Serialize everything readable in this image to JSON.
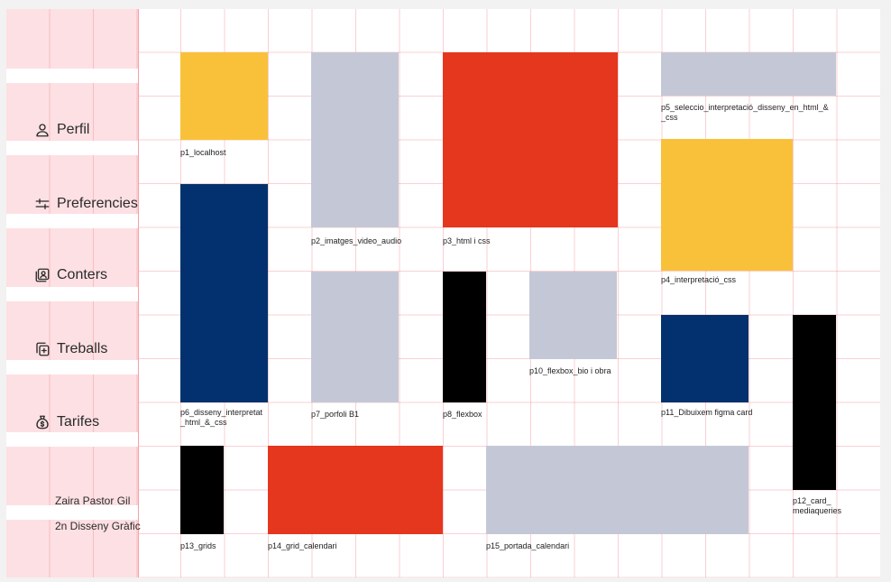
{
  "colors": {
    "yellow": "#f9c13a",
    "grey": "#c4c8d6",
    "red": "#e5361e",
    "navy": "#03316f",
    "black": "#000000",
    "sidebar": "#fde0e3",
    "grid_line": "#f0a0a8"
  },
  "sidebar": {
    "items": [
      {
        "label": "Perfil",
        "icon": "user-icon"
      },
      {
        "label": "Preferencies",
        "icon": "sliders-icon"
      },
      {
        "label": "Conters",
        "icon": "contact-card-icon"
      },
      {
        "label": "Treballs",
        "icon": "copy-plus-icon"
      },
      {
        "label": "Tarifes",
        "icon": "money-bag-icon"
      }
    ],
    "user_name": "Zaira Pastor Gil",
    "user_course": "2n Disseny Gràfic"
  },
  "projects": [
    {
      "label": "p1_localhost",
      "color": "yellow"
    },
    {
      "label": "p2_imatges_video_audio",
      "color": "grey"
    },
    {
      "label": "p3_html i css",
      "color": "red"
    },
    {
      "label": "p4_interpretació_css",
      "color": "yellow"
    },
    {
      "label": "p5_seleccio_interpretació_disseny_en_html_&\n_css",
      "color": "grey"
    },
    {
      "label": "p6_disseny_interpretat\n_html_&_css",
      "color": "navy"
    },
    {
      "label": "p7_porfoli B1",
      "color": "grey"
    },
    {
      "label": "p8_flexbox",
      "color": "black"
    },
    {
      "label": "p10_flexbox_bio i obra",
      "color": "grey"
    },
    {
      "label": "p11_Dibuixem figma card",
      "color": "navy"
    },
    {
      "label": "p12_card_\nmediaqueries",
      "color": "black"
    },
    {
      "label": "p13_grids",
      "color": "black"
    },
    {
      "label": "p14_grid_calendari",
      "color": "red"
    },
    {
      "label": "p15_portada_calendari",
      "color": "grey"
    }
  ]
}
